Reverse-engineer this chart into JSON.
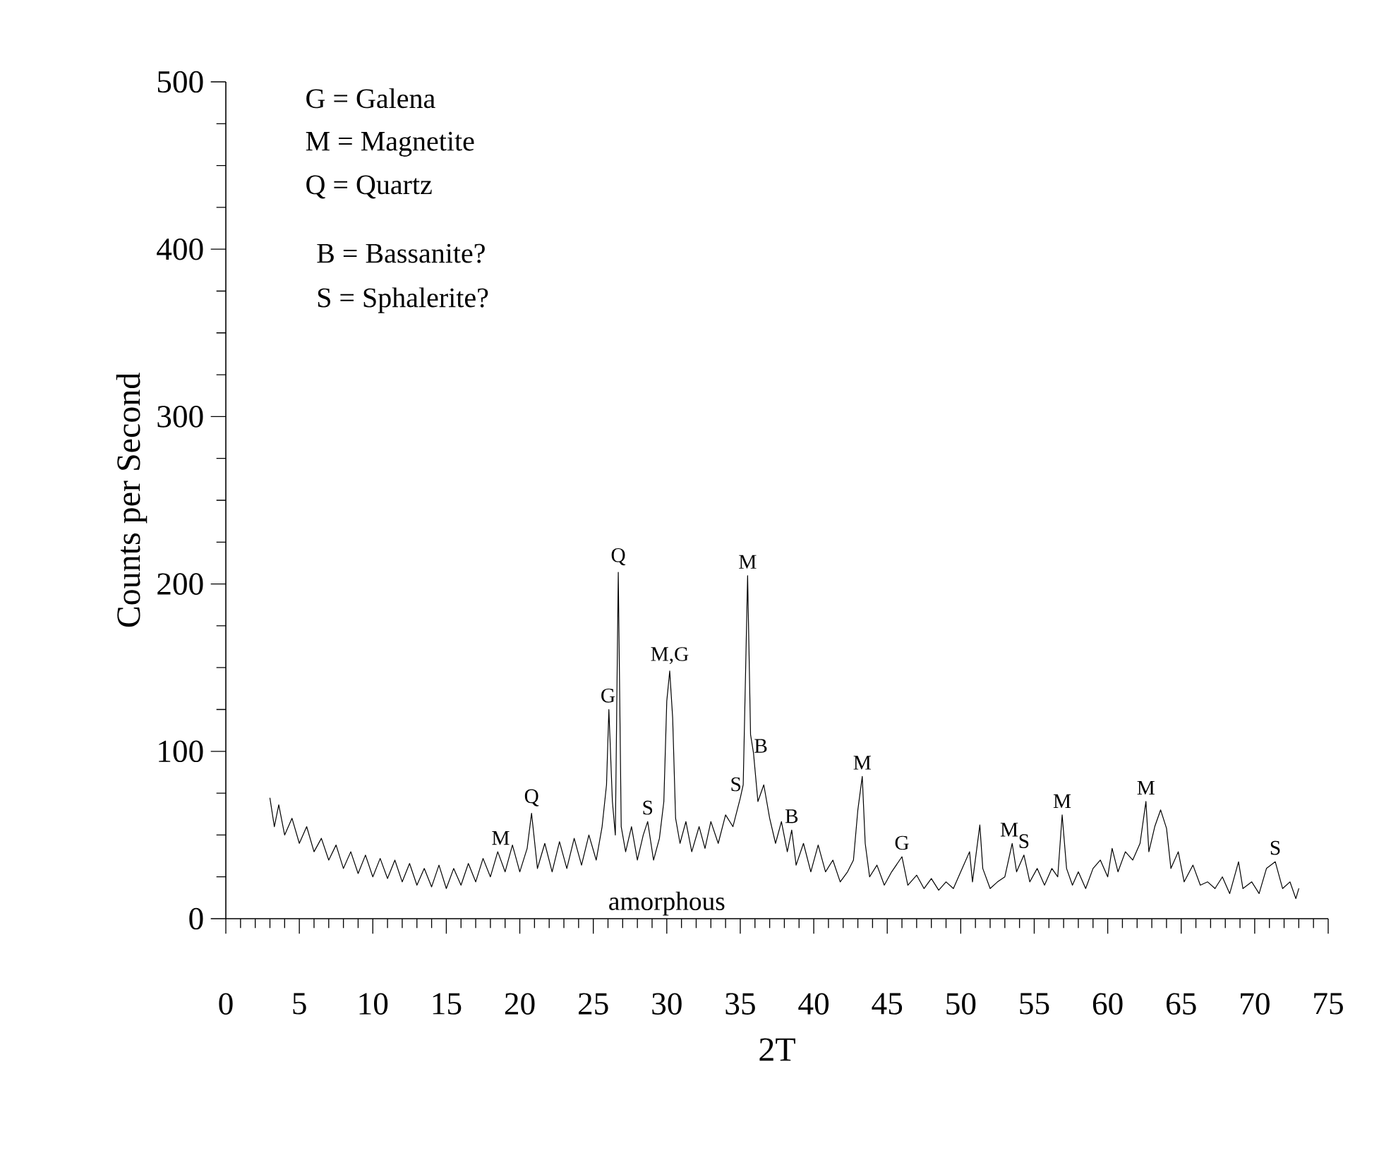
{
  "chart_data": {
    "type": "line",
    "xlabel": "2T",
    "ylabel": "Counts per Second",
    "xlim": [
      0,
      75
    ],
    "ylim": [
      0,
      500
    ],
    "xticks": [
      0,
      5,
      10,
      15,
      20,
      25,
      30,
      35,
      40,
      45,
      50,
      55,
      60,
      65,
      70,
      75
    ],
    "yticks": [
      0,
      100,
      200,
      300,
      400,
      500
    ],
    "x": [
      3.0,
      3.3,
      3.6,
      4.0,
      4.5,
      5,
      5.5,
      6,
      6.5,
      7,
      7.5,
      8,
      8.5,
      9,
      9.5,
      10,
      10.5,
      11,
      11.5,
      12,
      12.5,
      13,
      13.5,
      14,
      14.5,
      15,
      15.5,
      16,
      16.5,
      17,
      17.5,
      18,
      18.5,
      19,
      19.5,
      20,
      20.5,
      20.8,
      21.2,
      21.7,
      22.2,
      22.7,
      23.2,
      23.7,
      24.2,
      24.7,
      25.2,
      25.6,
      25.9,
      26.06,
      26.3,
      26.5,
      26.7,
      26.9,
      27.2,
      27.6,
      28,
      28.4,
      28.7,
      29.1,
      29.5,
      29.8,
      30.0,
      30.2,
      30.4,
      30.6,
      30.9,
      31.3,
      31.7,
      32.2,
      32.6,
      33,
      33.5,
      34,
      34.5,
      35,
      35.2,
      35.5,
      35.7,
      35.9,
      36.2,
      36.6,
      37,
      37.4,
      37.8,
      38.2,
      38.5,
      38.8,
      39.3,
      39.8,
      40.3,
      40.8,
      41.3,
      41.8,
      42.3,
      42.7,
      43.0,
      43.3,
      43.5,
      43.8,
      44.3,
      44.8,
      45.3,
      46.0,
      46.4,
      47,
      47.5,
      48,
      48.5,
      49,
      49.5,
      50,
      50.6,
      50.8,
      51.3,
      51.5,
      52,
      52.5,
      53,
      53.5,
      53.8,
      54.3,
      54.7,
      55.2,
      55.7,
      56.2,
      56.6,
      56.9,
      57.2,
      57.6,
      58,
      58.5,
      59,
      59.5,
      60,
      60.3,
      60.7,
      61.2,
      61.7,
      62.2,
      62.6,
      62.8,
      63.2,
      63.6,
      64.0,
      64.3,
      64.8,
      65.2,
      65.8,
      66.3,
      66.8,
      67.3,
      67.8,
      68.3,
      68.9,
      69.2,
      69.8,
      70.3,
      70.8,
      71.4,
      71.9,
      72.4,
      72.8,
      73
    ],
    "series": [
      {
        "color": "#000000",
        "values": [
          72,
          55,
          68,
          50,
          60,
          45,
          55,
          40,
          48,
          35,
          44,
          30,
          40,
          27,
          38,
          25,
          36,
          24,
          35,
          22,
          33,
          20,
          30,
          19,
          32,
          18,
          30,
          20,
          33,
          22,
          36,
          25,
          40,
          28,
          44,
          28,
          42,
          63,
          30,
          45,
          28,
          46,
          30,
          48,
          32,
          50,
          35,
          55,
          80,
          125,
          70,
          50,
          207,
          55,
          40,
          55,
          35,
          50,
          58,
          35,
          48,
          70,
          130,
          148,
          120,
          60,
          45,
          58,
          40,
          55,
          42,
          58,
          45,
          62,
          55,
          72,
          80,
          205,
          110,
          99,
          70,
          80,
          60,
          45,
          58,
          40,
          53,
          32,
          45,
          28,
          44,
          28,
          35,
          22,
          28,
          35,
          65,
          85,
          45,
          25,
          32,
          20,
          28,
          37,
          20,
          26,
          18,
          24,
          17,
          22,
          18,
          28,
          40,
          22,
          56,
          30,
          18,
          22,
          25,
          45,
          28,
          38,
          22,
          30,
          20,
          30,
          25,
          62,
          30,
          20,
          28,
          18,
          30,
          35,
          25,
          42,
          28,
          40,
          35,
          45,
          70,
          40,
          55,
          65,
          54,
          30,
          40,
          22,
          32,
          20,
          22,
          18,
          25,
          15,
          34,
          18,
          22,
          15,
          30,
          34,
          18,
          22,
          12,
          18
        ]
      }
    ],
    "annotations": [
      "G = Galena",
      "M = Magnetite",
      "Q = Quartz",
      "B = Bassanite?",
      "S = Sphalerite?",
      {
        "text": "M",
        "x": 18.7,
        "y": 40
      },
      {
        "text": "Q",
        "x": 20.8,
        "y": 63
      },
      {
        "text": "G",
        "x": 26.0,
        "y": 125
      },
      {
        "text": "Q",
        "x": 26.7,
        "y": 207
      },
      {
        "text": "S",
        "x": 28.7,
        "y": 58
      },
      {
        "text": "M,G",
        "x": 30.2,
        "y": 148
      },
      {
        "text": "S",
        "x": 34.7,
        "y": 72
      },
      {
        "text": "M",
        "x": 35.5,
        "y": 205
      },
      {
        "text": "B",
        "x": 36.4,
        "y": 95
      },
      {
        "text": "B",
        "x": 38.5,
        "y": 53
      },
      {
        "text": "M",
        "x": 43.3,
        "y": 85
      },
      {
        "text": "G",
        "x": 46.0,
        "y": 37
      },
      {
        "text": "M",
        "x": 53.3,
        "y": 45
      },
      {
        "text": "S",
        "x": 54.3,
        "y": 38
      },
      {
        "text": "M",
        "x": 56.9,
        "y": 62
      },
      {
        "text": "M",
        "x": 62.6,
        "y": 70
      },
      {
        "text": "S",
        "x": 71.4,
        "y": 34
      },
      "amorphous"
    ]
  }
}
